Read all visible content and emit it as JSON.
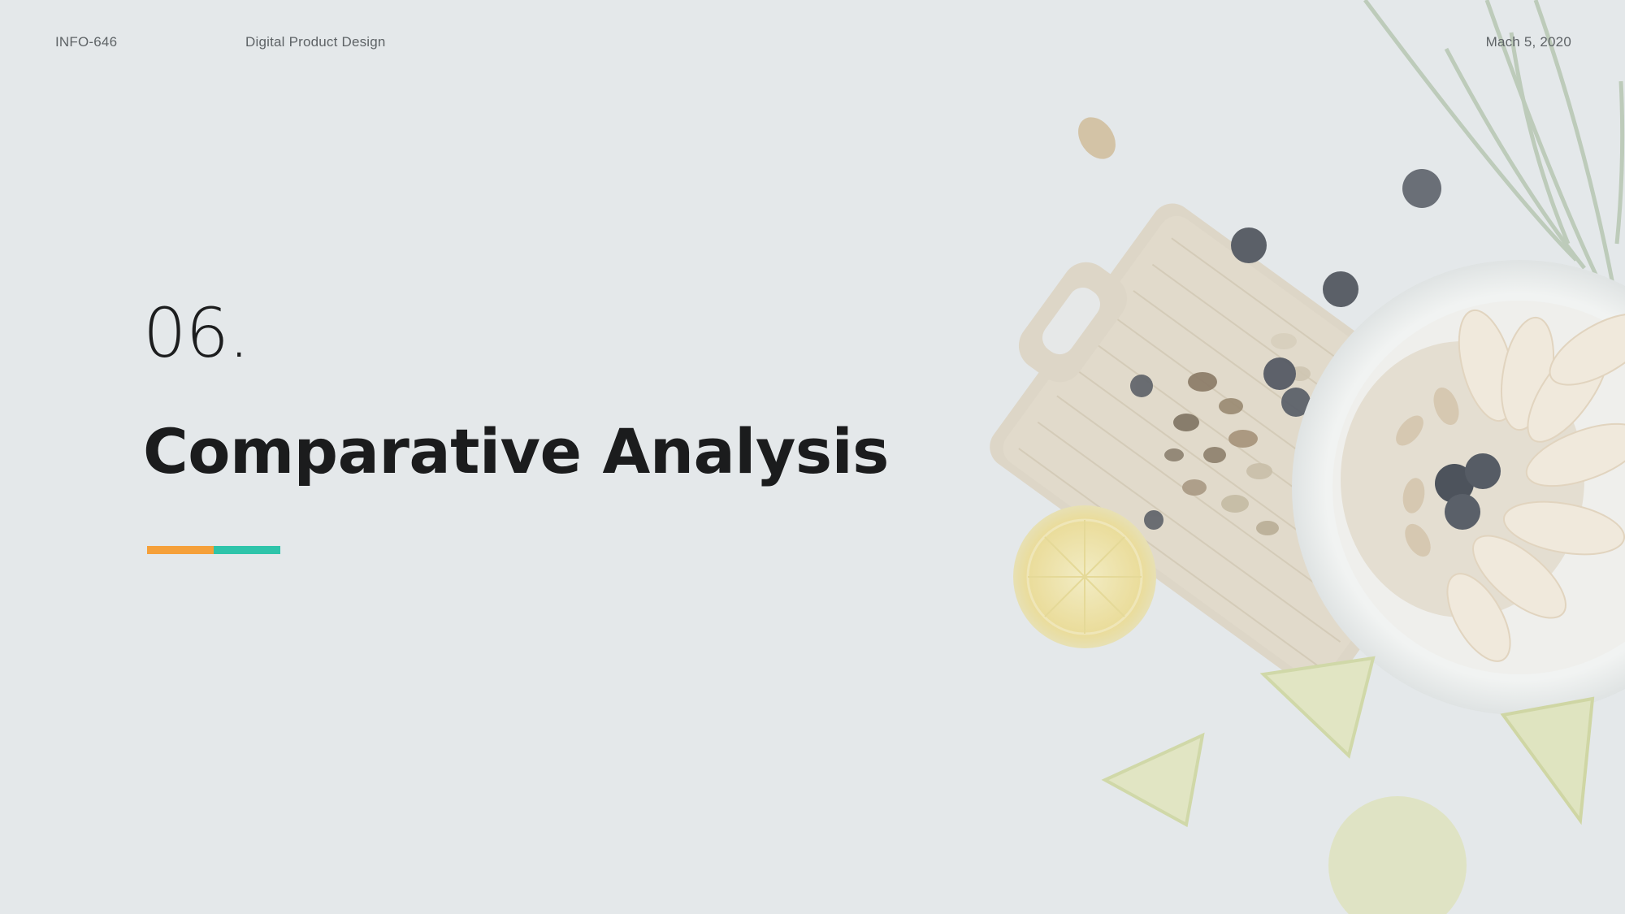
{
  "header": {
    "course_code": "INFO-646",
    "course_name": "Digital Product Design",
    "date": "Mach 5, 2020"
  },
  "section": {
    "number": "06.",
    "title": "Comparative Analysis"
  },
  "accent_colors": [
    "#f5a03a",
    "#2ec4aa"
  ],
  "background_image": {
    "subject": "faded food photo: cutting board with nuts and berries, bowl of oats with apple slices, lemons and limes, palm leaf"
  }
}
